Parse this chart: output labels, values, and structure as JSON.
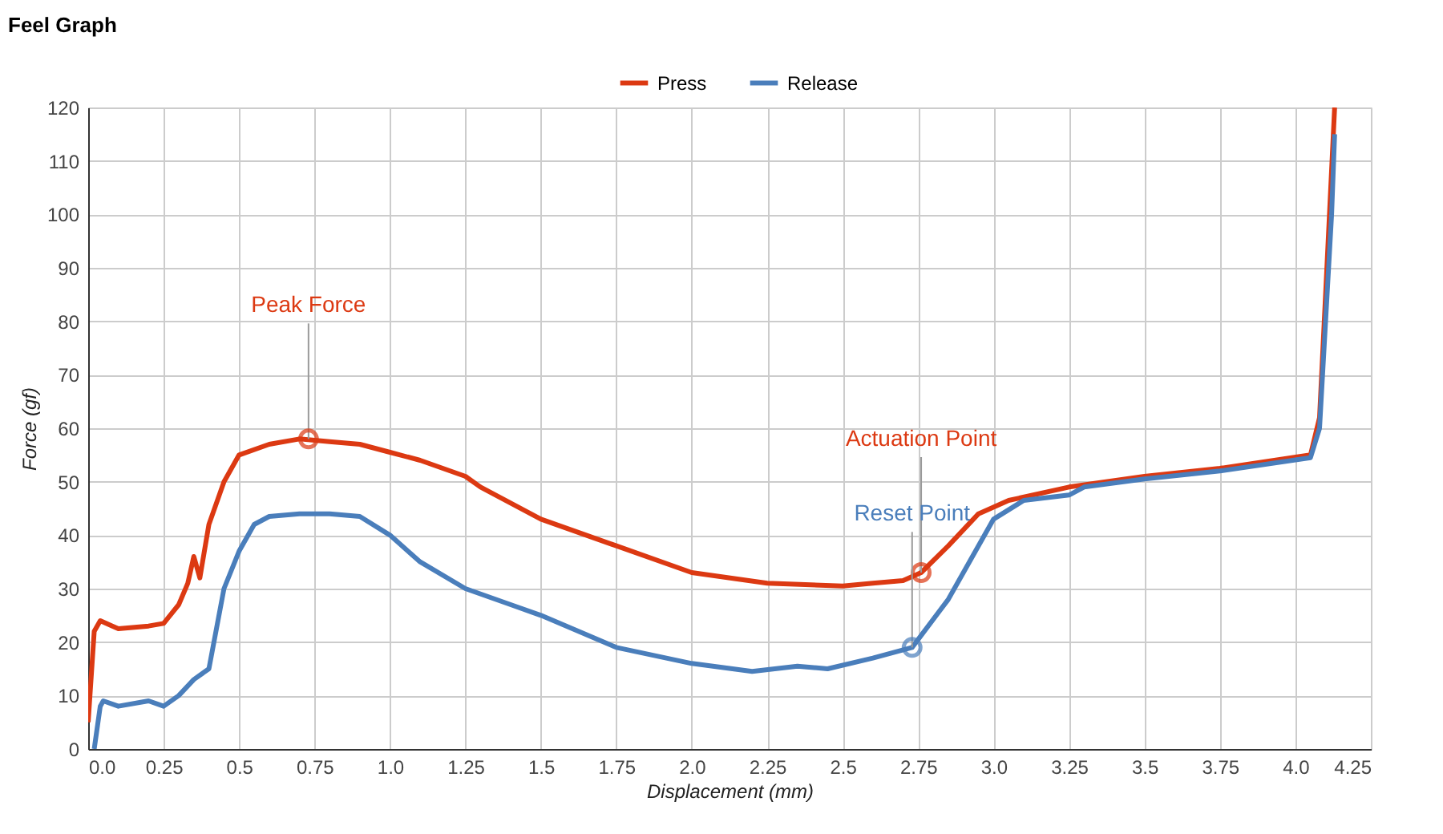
{
  "chart_data": {
    "type": "line",
    "title": "Feel Graph",
    "xlabel": "Displacement (mm)",
    "ylabel": "Force (gf)",
    "xlim": [
      0,
      4.25
    ],
    "ylim": [
      0,
      120
    ],
    "xticks": [
      {
        "value": 0,
        "label": "0.0"
      },
      0.25,
      0.5,
      0.75,
      {
        "value": 1,
        "label": "1.0"
      },
      1.25,
      1.5,
      1.75,
      {
        "value": 2,
        "label": "2.0"
      },
      2.25,
      2.5,
      2.75,
      {
        "value": 3,
        "label": "3.0"
      },
      3.25,
      3.5,
      3.75,
      {
        "value": 4,
        "label": "4.0"
      },
      4.25
    ],
    "yticks": [
      0,
      10,
      20,
      30,
      40,
      50,
      60,
      70,
      80,
      90,
      100,
      110,
      120
    ],
    "grid": true,
    "legend": "top",
    "marker": "none",
    "line_style": "solid",
    "series": [
      {
        "name": "Press",
        "color": "#dc3912",
        "x": [
          0.0,
          0.02,
          0.04,
          0.08,
          0.1,
          0.2,
          0.25,
          0.3,
          0.33,
          0.35,
          0.37,
          0.4,
          0.45,
          0.5,
          0.6,
          0.7,
          0.8,
          0.9,
          1.0,
          1.1,
          1.25,
          1.3,
          1.5,
          1.75,
          2.0,
          2.25,
          2.5,
          2.6,
          2.7,
          2.76,
          2.85,
          2.95,
          3.05,
          3.25,
          3.5,
          3.75,
          4.05,
          4.08,
          4.1,
          4.13
        ],
        "values": [
          5,
          22,
          24,
          23,
          22.5,
          23,
          23.5,
          27,
          31,
          36,
          32,
          42,
          50,
          55,
          57,
          58,
          57.5,
          57,
          55.5,
          54,
          51,
          49,
          43,
          38,
          33,
          31,
          30.5,
          31,
          31.5,
          33,
          38,
          44,
          46.5,
          49,
          51,
          52.5,
          55,
          62,
          85,
          120
        ]
      },
      {
        "name": "Release",
        "color": "#4a7ebb",
        "x": [
          0.02,
          0.04,
          0.05,
          0.1,
          0.2,
          0.25,
          0.3,
          0.35,
          0.4,
          0.45,
          0.5,
          0.55,
          0.6,
          0.7,
          0.8,
          0.9,
          1.0,
          1.1,
          1.25,
          1.4,
          1.5,
          1.75,
          2.0,
          2.2,
          2.35,
          2.45,
          2.6,
          2.73,
          2.85,
          3.0,
          3.1,
          3.25,
          3.3,
          3.5,
          3.75,
          4.05,
          4.08,
          4.12,
          4.13
        ],
        "values": [
          0,
          8,
          9,
          8,
          9,
          8,
          10,
          13,
          15,
          30,
          37,
          42,
          43.5,
          44,
          44,
          43.5,
          40,
          35,
          30,
          27,
          25,
          19,
          16,
          14.5,
          15.5,
          15,
          17,
          19,
          28,
          43,
          46.5,
          47.5,
          49,
          50.5,
          52,
          54.5,
          60,
          100,
          115
        ]
      }
    ],
    "annotations": [
      {
        "text": "Peak Force",
        "x": 0.73,
        "y": 58
      },
      {
        "text": "Actuation Point",
        "x": 2.76,
        "y": 33
      },
      {
        "text": "Reset Point",
        "x": 2.73,
        "y": 19
      }
    ]
  }
}
